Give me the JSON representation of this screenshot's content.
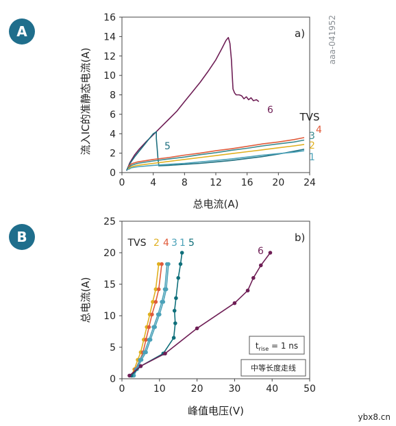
{
  "panel_labels": {
    "a": "A",
    "b": "B"
  },
  "watermark": "ybx8.cn",
  "chart_data": [
    {
      "type": "line",
      "panel": "a)",
      "xlabel": "总电流(A)",
      "ylabel": "流入IC的准静态电流(A)",
      "xlim": [
        0,
        24
      ],
      "ylim": [
        0,
        16
      ],
      "xticks": [
        0,
        4,
        8,
        12,
        16,
        20,
        24
      ],
      "yticks": [
        0,
        2,
        4,
        6,
        8,
        10,
        12,
        14,
        16
      ],
      "side_label": "aaa-041952",
      "legend_title": "TVS",
      "series": [
        {
          "name": "6",
          "color": "#6e1e55",
          "x": [
            0.6,
            1.0,
            1.6,
            2.2,
            3.0,
            4.0,
            5.0,
            6.0,
            7.0,
            8.0,
            9.0,
            10.0,
            11.0,
            12.0,
            12.8,
            13.3,
            13.6,
            13.8,
            14.0,
            14.1,
            14.2,
            14.4,
            14.6,
            15.0,
            15.3,
            15.6,
            15.9,
            16.2,
            16.5,
            16.8,
            17.2,
            17.5
          ],
          "y": [
            0.2,
            1.0,
            1.8,
            2.4,
            3.1,
            3.9,
            4.7,
            5.5,
            6.3,
            7.3,
            8.3,
            9.3,
            10.4,
            11.6,
            12.8,
            13.6,
            13.9,
            13.3,
            11.6,
            10.0,
            8.6,
            8.2,
            8.0,
            8.0,
            7.9,
            7.6,
            7.8,
            7.5,
            7.7,
            7.4,
            7.5,
            7.3
          ]
        },
        {
          "name": "5",
          "color": "#1d6f7f",
          "x": [
            0.6,
            1.0,
            1.6,
            2.2,
            2.8,
            3.4,
            4.0,
            4.4,
            4.4,
            4.5,
            4.6,
            4.7,
            4.7,
            6,
            8,
            10,
            12,
            14,
            16,
            18,
            20,
            22,
            23.3
          ],
          "y": [
            0.2,
            0.9,
            1.6,
            2.2,
            2.8,
            3.4,
            4.0,
            4.2,
            3.5,
            2.5,
            1.5,
            0.8,
            0.7,
            0.75,
            0.85,
            0.95,
            1.1,
            1.25,
            1.45,
            1.65,
            1.9,
            2.2,
            2.4
          ]
        },
        {
          "name": "1",
          "color": "#4aa1b8",
          "x": [
            0.8,
            1.2,
            2,
            4,
            6,
            8,
            10,
            12,
            14,
            16,
            18,
            20,
            22,
            23.3
          ],
          "y": [
            0.3,
            0.5,
            0.6,
            0.75,
            0.85,
            0.95,
            1.1,
            1.25,
            1.4,
            1.6,
            1.8,
            1.95,
            2.1,
            2.25
          ]
        },
        {
          "name": "2",
          "color": "#e0b020",
          "x": [
            0.8,
            1.2,
            2,
            4,
            6,
            8,
            10,
            12,
            14,
            16,
            18,
            20,
            22,
            23.3
          ],
          "y": [
            0.4,
            0.6,
            0.75,
            0.95,
            1.15,
            1.35,
            1.55,
            1.75,
            1.95,
            2.15,
            2.35,
            2.55,
            2.75,
            2.9
          ]
        },
        {
          "name": "3",
          "color": "#3a8a8e",
          "x": [
            0.8,
            1.2,
            2,
            4,
            6,
            8,
            10,
            12,
            14,
            16,
            18,
            20,
            22,
            23.3
          ],
          "y": [
            0.5,
            0.75,
            0.95,
            1.2,
            1.4,
            1.6,
            1.85,
            2.05,
            2.3,
            2.5,
            2.75,
            2.95,
            3.15,
            3.35
          ]
        },
        {
          "name": "4",
          "color": "#e05a3a",
          "x": [
            0.8,
            1.2,
            2,
            4,
            6,
            8,
            10,
            12,
            14,
            16,
            18,
            20,
            22,
            23.3
          ],
          "y": [
            0.6,
            0.9,
            1.1,
            1.35,
            1.55,
            1.8,
            2.0,
            2.25,
            2.45,
            2.7,
            2.95,
            3.15,
            3.4,
            3.6
          ]
        }
      ]
    },
    {
      "type": "line",
      "panel": "b)",
      "xlabel": "峰值电压(V)",
      "ylabel": "总电流(A)",
      "xlim": [
        0,
        50
      ],
      "ylim": [
        0,
        25
      ],
      "xticks": [
        0,
        10,
        20,
        30,
        40,
        50
      ],
      "yticks": [
        0,
        5,
        10,
        15,
        20,
        25
      ],
      "legend_title": "TVS",
      "annotation_trise": {
        "t": "t",
        "sub": "rise",
        "rest": " = 1 ns"
      },
      "annotation_trace": "中等长度走线",
      "series": [
        {
          "name": "2",
          "color": "#e0b020",
          "x": [
            2.5,
            3.3,
            4.2,
            5.0,
            5.8,
            6.6,
            7.4,
            8.2,
            9.0,
            9.8
          ],
          "y": [
            0.5,
            1.5,
            3.0,
            4.2,
            6.2,
            8.2,
            10.2,
            12.2,
            14.2,
            18.2
          ]
        },
        {
          "name": "4",
          "color": "#e05a3a",
          "x": [
            2.8,
            3.6,
            4.8,
            5.6,
            6.4,
            7.2,
            8.0,
            9.0,
            9.8,
            10.6
          ],
          "y": [
            0.5,
            1.5,
            3.0,
            4.2,
            6.2,
            8.2,
            10.2,
            12.2,
            14.2,
            18.2
          ]
        },
        {
          "name": "3",
          "color": "#4aa1b8",
          "x": [
            3.0,
            3.8,
            4.8,
            6.0,
            7.2,
            8.4,
            9.6,
            10.6,
            11.4,
            12.0
          ],
          "y": [
            0.5,
            1.5,
            3.0,
            4.2,
            6.2,
            8.2,
            10.2,
            12.2,
            14.2,
            18.2
          ]
        },
        {
          "name": "1",
          "color": "#4aa1b8",
          "x": [
            3.2,
            4.0,
            5.2,
            6.4,
            7.6,
            8.8,
            10.0,
            11.0,
            11.8,
            12.4
          ],
          "y": [
            0.5,
            1.5,
            3.0,
            4.2,
            6.2,
            8.2,
            10.2,
            12.2,
            14.2,
            18.2
          ]
        },
        {
          "name": "5",
          "color": "#0f6f7a",
          "x": [
            2.5,
            5.0,
            11.0,
            13.8,
            14.2,
            14.0,
            14.4,
            15.0,
            15.6,
            16.0
          ],
          "y": [
            0.5,
            2.0,
            4.0,
            6.5,
            8.8,
            10.8,
            12.8,
            16.0,
            18.2,
            20.0
          ]
        },
        {
          "name": "6",
          "color": "#6e1e55",
          "x": [
            2.0,
            5.0,
            11.5,
            20.0,
            30.0,
            33.5,
            35.0,
            37.0,
            39.5
          ],
          "y": [
            0.5,
            2.0,
            4.0,
            8.0,
            12.0,
            14.0,
            16.0,
            18.0,
            20.0
          ]
        }
      ]
    }
  ]
}
